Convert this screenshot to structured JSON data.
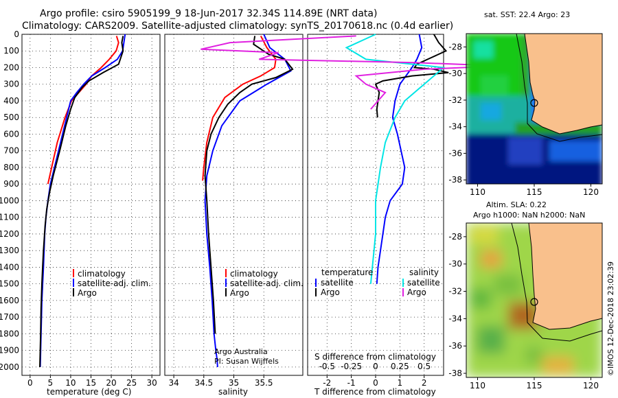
{
  "header": {
    "title_line1": "Argo profile: csiro 5905199_9 18-Jun-2017 32.34S 114.89E (NRT data)",
    "title_line2": "Climatology: CARS2009. Satellite-adjusted climatology: synTS_20170618.nc (0.4d earlier)"
  },
  "colors": {
    "climatology": "#ff0000",
    "satellite": "#0000ff",
    "argo": "#000000",
    "sal_satellite": "#00e5e5",
    "sal_argo": "#e020e0",
    "land": "#f9c08c"
  },
  "credit": {
    "line1": "Argo Australia",
    "line2": "PI: Susan Wijffels"
  },
  "watermark": "©IMOS 12-Dec-2018 23:02:39",
  "chart_data": [
    {
      "type": "line",
      "xlabel": "temperature (deg C)",
      "xticks": [
        "0",
        "5",
        "10",
        "15",
        "20",
        "25",
        "30"
      ],
      "xlim": [
        -2,
        32
      ],
      "ylim": [
        2050,
        0
      ],
      "yticks": [
        "0",
        "100",
        "200",
        "300",
        "400",
        "500",
        "600",
        "700",
        "800",
        "900",
        "1000",
        "1100",
        "1200",
        "1300",
        "1400",
        "1500",
        "1600",
        "1700",
        "1800",
        "1900",
        "2000"
      ],
      "legend": [
        "climatology",
        "satellite-adj. clim.",
        "Argo"
      ],
      "series": [
        {
          "name": "climatology",
          "color": "#ff0000",
          "x": [
            21.3,
            21.8,
            21.2,
            19.5,
            17.5,
            15.2,
            13.8,
            12.0,
            10.2,
            8.6,
            6.7,
            5.3,
            4.4
          ],
          "y": [
            10,
            50,
            100,
            150,
            200,
            250,
            300,
            350,
            400,
            500,
            650,
            800,
            900
          ]
        },
        {
          "name": "satellite-adj. clim.",
          "color": "#0000ff",
          "x": [
            23.4,
            23.1,
            22.8,
            21.5,
            18.5,
            15.2,
            13.2,
            11.5,
            10.0,
            9.0,
            7.5,
            6.0,
            5.0,
            4.4,
            3.9,
            3.6,
            3.3,
            3.1,
            2.9,
            2.7,
            2.5
          ],
          "y": [
            0,
            50,
            100,
            150,
            200,
            250,
            300,
            350,
            400,
            500,
            650,
            800,
            900,
            1000,
            1100,
            1200,
            1400,
            1500,
            1600,
            1800,
            2000
          ]
        },
        {
          "name": "Argo",
          "color": "#000000",
          "x": [
            22.9,
            22.6,
            22.9,
            22.2,
            21.8,
            18.0,
            14.5,
            12.8,
            11.0,
            10.0,
            8.8,
            7.3,
            5.7,
            4.8,
            4.1,
            3.7,
            3.3,
            3.1,
            2.9,
            2.7,
            2.6,
            2.4
          ],
          "y": [
            10,
            50,
            100,
            150,
            180,
            230,
            280,
            320,
            380,
            450,
            550,
            700,
            850,
            950,
            1050,
            1150,
            1300,
            1400,
            1500,
            1650,
            1800,
            2000
          ]
        }
      ]
    },
    {
      "type": "line",
      "xlabel": "salinity",
      "xticks": [
        "34",
        "34.5",
        "35",
        "35.5"
      ],
      "xlim": [
        33.85,
        36.15
      ],
      "ylim": [
        2050,
        0
      ],
      "legend": [
        "climatology",
        "satellite-adj. clim.",
        "Argo"
      ],
      "series": [
        {
          "name": "climatology",
          "color": "#ff0000",
          "x": [
            35.45,
            35.55,
            35.7,
            35.68,
            35.45,
            35.15,
            34.85,
            34.65,
            34.55,
            34.5,
            34.48
          ],
          "y": [
            10,
            80,
            150,
            200,
            250,
            300,
            380,
            500,
            650,
            800,
            880
          ]
        },
        {
          "name": "satellite-adj. clim.",
          "color": "#0000ff",
          "x": [
            35.5,
            35.6,
            35.85,
            35.95,
            35.55,
            35.1,
            34.8,
            34.65,
            34.55,
            34.52,
            34.55,
            34.6,
            34.64,
            34.67,
            34.7,
            34.72,
            34.73
          ],
          "y": [
            0,
            80,
            150,
            220,
            300,
            400,
            550,
            700,
            850,
            1000,
            1200,
            1400,
            1600,
            1800,
            1900,
            1950,
            2000
          ]
        },
        {
          "name": "Argo",
          "color": "#000000",
          "x": [
            35.35,
            35.33,
            35.58,
            35.85,
            35.98,
            35.7,
            35.3,
            35.1,
            34.9,
            34.75,
            34.62,
            34.55,
            34.52,
            34.55,
            34.58,
            34.62,
            34.66,
            34.69
          ],
          "y": [
            10,
            60,
            120,
            150,
            210,
            260,
            300,
            350,
            420,
            500,
            600,
            700,
            850,
            1000,
            1200,
            1400,
            1600,
            1800
          ]
        }
      ]
    },
    {
      "type": "line",
      "xlabel": "T difference from climatology",
      "xlabel_top": "S difference from climatology",
      "xticks": [
        "-2",
        "-1",
        "0",
        "1",
        "2"
      ],
      "xticks_top": [
        "-0.5",
        "-0.25",
        "0",
        "0.25",
        "0.5"
      ],
      "xlim": [
        -2.8,
        2.8
      ],
      "ylim": [
        2050,
        0
      ],
      "legend_left_title": "temperature",
      "legend_right_title": "salinity",
      "legend": [
        "satellite",
        "Argo",
        "satellite",
        "Argo"
      ],
      "series": [
        {
          "name": "T satellite",
          "color": "#0000ff",
          "x": [
            1.8,
            1.9,
            1.7,
            1.5,
            1.0,
            0.8,
            0.7,
            0.9,
            1.2,
            1.1,
            0.6,
            0.4,
            0.3,
            0.1,
            0.05
          ],
          "y": [
            0,
            80,
            150,
            200,
            300,
            400,
            500,
            600,
            800,
            900,
            1000,
            1100,
            1200,
            1400,
            1500
          ]
        },
        {
          "name": "T argo",
          "color": "#000000",
          "x": [
            2.4,
            2.6,
            2.9,
            2.3,
            1.7,
            1.6,
            2.4,
            3.0,
            1.5,
            0.3,
            0.0,
            0.15,
            0.1,
            0.05,
            0.08
          ],
          "y": [
            0,
            50,
            100,
            140,
            180,
            200,
            210,
            230,
            250,
            280,
            300,
            350,
            400,
            450,
            500
          ]
        },
        {
          "name": "S satellite",
          "color": "#00e5e5",
          "x": [
            0.0,
            -0.3,
            -0.1,
            0.7,
            0.5,
            0.3,
            0.2,
            0.1,
            0.05,
            0.0,
            0.0,
            -0.05
          ],
          "y": [
            0,
            80,
            150,
            200,
            300,
            400,
            500,
            650,
            800,
            1000,
            1200,
            1500
          ]
        },
        {
          "name": "S argo",
          "color": "#e020e0",
          "x": [
            -0.2,
            -1.5,
            -1.8,
            -1.0,
            -1.2,
            0.4,
            1.3,
            0.5,
            -0.2,
            -0.1,
            0.1,
            -0.05
          ],
          "y": [
            10,
            50,
            90,
            110,
            150,
            170,
            190,
            210,
            250,
            300,
            350,
            450
          ]
        }
      ]
    },
    {
      "type": "heatmap",
      "title": "sat. SST: 22.4 Argo: 23",
      "xticks": [
        "110",
        "115",
        "120"
      ],
      "yticks": [
        "-28",
        "-30",
        "-32",
        "-34",
        "-36",
        "-38"
      ]
    },
    {
      "type": "heatmap",
      "title_line1": "Altim. SLA: 0.22",
      "title_line2": "Argo h1000: NaN h2000: NaN",
      "xticks": [
        "110",
        "115",
        "120"
      ],
      "yticks": [
        "-28",
        "-30",
        "-32",
        "-34",
        "-36",
        "-38"
      ]
    }
  ]
}
